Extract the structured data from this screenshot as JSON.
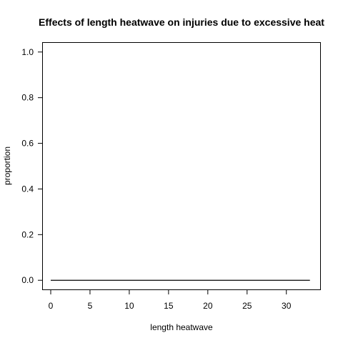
{
  "chart_data": {
    "type": "line",
    "title": "Effects of length heatwave on injuries due to excessive heat",
    "xlabel": "length heatwave",
    "ylabel": "proportion",
    "xlim": [
      -1,
      34.3
    ],
    "ylim": [
      -0.04,
      1.04
    ],
    "xticks": [
      0,
      5,
      10,
      15,
      20,
      25,
      30
    ],
    "yticks": [
      0.0,
      0.2,
      0.4,
      0.6,
      0.8,
      1.0
    ],
    "ytick_labels": [
      "0.0",
      "0.2",
      "0.4",
      "0.6",
      "0.8",
      "1.0"
    ],
    "grid": false,
    "series": [
      {
        "x": [
          0,
          33
        ],
        "y": [
          0,
          0
        ]
      }
    ]
  }
}
